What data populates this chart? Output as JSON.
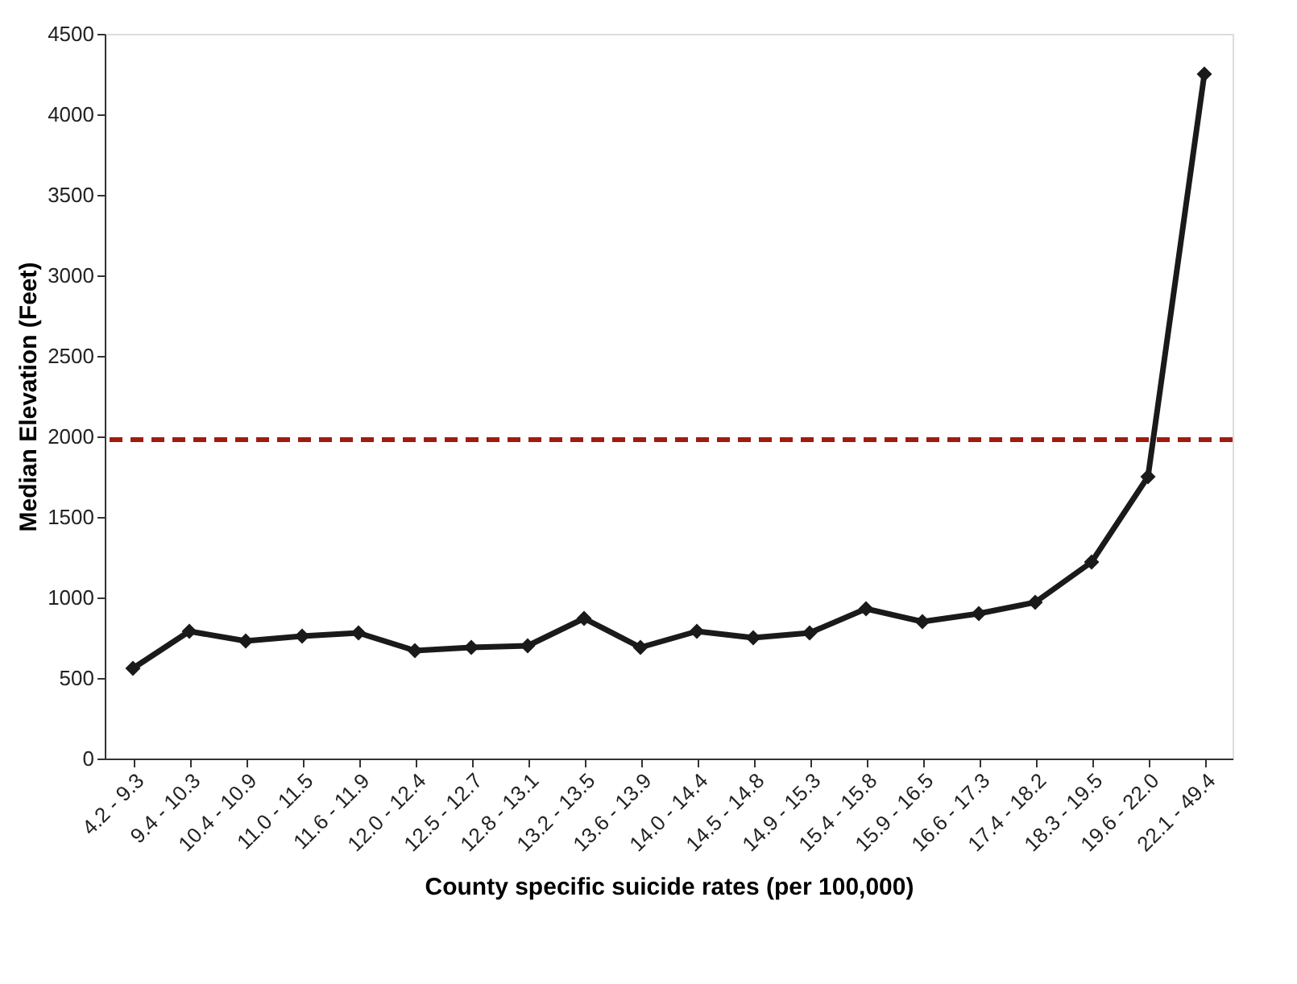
{
  "chart_data": {
    "type": "line",
    "xlabel": "County specific suicide rates (per 100,000)",
    "ylabel": "Median Elevation (Feet)",
    "categories": [
      "4.2 - 9.3",
      "9.4 - 10.3",
      "10.4 - 10.9",
      "11.0 - 11.5",
      "11.6 - 11.9",
      "12.0 - 12.4",
      "12.5 - 12.7",
      "12.8 - 13.1",
      "13.2 - 13.5",
      "13.6 - 13.9",
      "14.0 - 14.4",
      "14.5 - 14.8",
      "14.9 - 15.3",
      "15.4 - 15.8",
      "15.9 - 16.5",
      "16.6 - 17.3",
      "17.4 - 18.2",
      "18.3 - 19.5",
      "19.6 - 22.0",
      "22.1 - 49.4"
    ],
    "series": [
      {
        "color": "#1a1a1a",
        "values": [
          560,
          790,
          730,
          760,
          780,
          670,
          690,
          700,
          870,
          690,
          790,
          750,
          780,
          930,
          850,
          900,
          970,
          1220,
          1750,
          4250
        ]
      }
    ],
    "ylim": [
      0,
      4500
    ],
    "yticks": [
      0,
      500,
      1000,
      1500,
      2000,
      2500,
      3000,
      3500,
      4000,
      4500
    ],
    "ref_lines": [
      {
        "axis": "y",
        "value": 1980,
        "color": "#a01c10",
        "line_style": "dashed"
      }
    ],
    "marker": "diamond",
    "line_style": "solid",
    "grid": false
  }
}
